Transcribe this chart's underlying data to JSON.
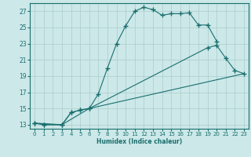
{
  "xlabel": "Humidex (Indice chaleur)",
  "background_color": "#cce8e8",
  "grid_color": "#aacccc",
  "line_color": "#1a6e6e",
  "xlim": [
    -0.5,
    23.5
  ],
  "ylim": [
    12.5,
    28.0
  ],
  "xticks": [
    0,
    1,
    2,
    3,
    4,
    5,
    6,
    7,
    8,
    9,
    10,
    11,
    12,
    13,
    14,
    15,
    16,
    17,
    18,
    19,
    20,
    21,
    22,
    23
  ],
  "yticks": [
    13,
    15,
    17,
    19,
    21,
    23,
    25,
    27
  ],
  "line1_x": [
    0,
    1,
    3,
    4,
    5,
    6,
    7,
    8,
    9,
    10,
    11,
    12,
    13,
    14,
    15,
    16,
    17,
    18,
    19,
    20
  ],
  "line1_y": [
    13.2,
    13.0,
    13.0,
    14.5,
    14.8,
    15.0,
    16.8,
    20.0,
    23.0,
    25.2,
    27.0,
    27.5,
    27.2,
    26.5,
    26.7,
    26.7,
    26.8,
    25.3,
    25.3,
    23.3
  ],
  "line2_x": [
    0,
    1,
    3,
    4,
    5,
    6,
    19,
    20,
    21,
    22,
    23
  ],
  "line2_y": [
    13.2,
    13.0,
    13.0,
    14.5,
    14.8,
    15.0,
    22.5,
    22.8,
    21.2,
    19.7,
    19.3
  ],
  "line3_x": [
    0,
    3,
    6,
    23
  ],
  "line3_y": [
    13.2,
    13.0,
    15.0,
    19.3
  ]
}
